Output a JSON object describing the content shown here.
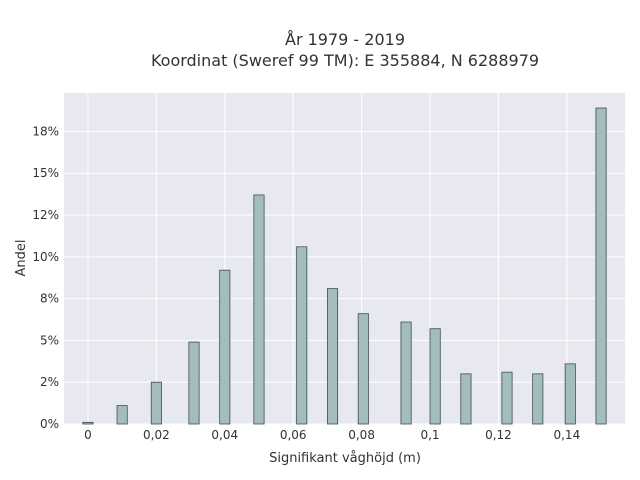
{
  "chart_data": {
    "type": "bar",
    "title": "År 1979 - 2019",
    "subtitle": "Koordinat (Sweref 99 TM): E 355884, N 6288979",
    "xlabel": "Signifikant våghöjd (m)",
    "ylabel": "Andel",
    "xlim": [
      -0.007,
      0.157
    ],
    "ylim": [
      0,
      0.198
    ],
    "x_ticks": [
      0,
      0.02,
      0.04,
      0.06,
      0.08,
      0.1,
      0.12,
      0.14
    ],
    "x_tick_labels": [
      "0",
      "0,02",
      "0,04",
      "0,06",
      "0,08",
      "0,1",
      "0,12",
      "0,14"
    ],
    "y_ticks": [
      0,
      0.025,
      0.05,
      0.075,
      0.1,
      0.125,
      0.15,
      0.175
    ],
    "y_tick_labels": [
      "0%",
      "2%",
      "5%",
      "8%",
      "10%",
      "12%",
      "15%",
      "18%"
    ],
    "bar_width": 0.003,
    "x": [
      0.0,
      0.01,
      0.02,
      0.031,
      0.04,
      0.05,
      0.0625,
      0.0715,
      0.0805,
      0.093,
      0.1015,
      0.1105,
      0.1225,
      0.1315,
      0.141,
      0.15
    ],
    "values": [
      0.001,
      0.011,
      0.025,
      0.049,
      0.092,
      0.137,
      0.106,
      0.081,
      0.066,
      0.061,
      0.057,
      0.03,
      0.031,
      0.03,
      0.036,
      0.189
    ],
    "grid": true,
    "colors": {
      "bar_fill": "#a3bcbc",
      "bar_stroke": "#3f4f4f",
      "plot_bg": "#e8e8f0",
      "grid": "#ffffff"
    }
  }
}
